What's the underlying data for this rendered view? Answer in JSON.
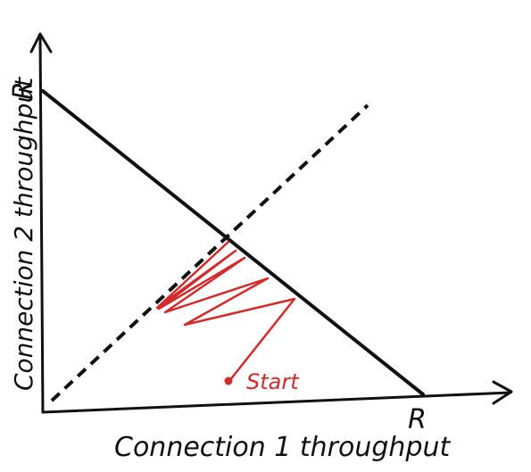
{
  "diagram": {
    "axis_x_label": "Connection 1 throughput",
    "axis_y_label": "Connection 2 throughput",
    "x_capacity_label": "R",
    "y_capacity_label": "R",
    "start_label": "Start"
  },
  "colors": {
    "ink": "#111111",
    "trace": "#d12b2b"
  }
}
